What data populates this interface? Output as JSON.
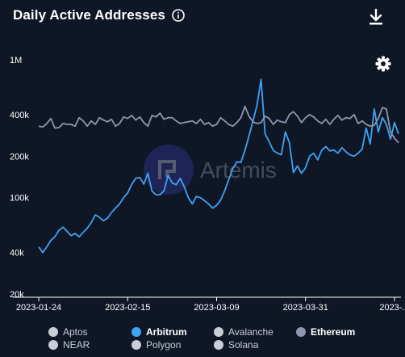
{
  "header": {
    "title": "Daily Active Addresses",
    "info_icon": "info-icon",
    "download_icon": "download-icon",
    "settings_icon": "gear-icon"
  },
  "watermark": {
    "text": "Artemis",
    "logo": "artemis-logo"
  },
  "colors": {
    "background": "#0f1726",
    "arbitrum": "#3ea3f2",
    "ethereum": "#8f96b0",
    "inactive": "#c9ced6",
    "axis_text": "#ffffff"
  },
  "legend": [
    {
      "label": "Aptos",
      "color": "#c9ced6",
      "active": false
    },
    {
      "label": "Arbitrum",
      "color": "#3ea3f2",
      "active": true
    },
    {
      "label": "Avalanche",
      "color": "#c9ced6",
      "active": false
    },
    {
      "label": "Ethereum",
      "color": "#8f96b0",
      "active": true
    },
    {
      "label": "NEAR",
      "color": "#c9ced6",
      "active": false
    },
    {
      "label": "Polygon",
      "color": "#c9ced6",
      "active": false
    },
    {
      "label": "Solana",
      "color": "#c9ced6",
      "active": false
    }
  ],
  "chart_data": {
    "type": "line",
    "title": "Daily Active Addresses",
    "y_scale": "log",
    "ylim": [
      20000,
      1000000
    ],
    "y_ticks": [
      {
        "value": 20000,
        "label": "20k"
      },
      {
        "value": 40000,
        "label": "40k"
      },
      {
        "value": 100000,
        "label": "100k"
      },
      {
        "value": 200000,
        "label": "200k"
      },
      {
        "value": 400000,
        "label": "400k"
      },
      {
        "value": 1000000,
        "label": "1M"
      }
    ],
    "x_tick_labels": [
      "2023-01-24",
      "2023-02-15",
      "2023-03-09",
      "2023-03-31",
      "2023-..."
    ],
    "x_tick_index": [
      0,
      22,
      44,
      66,
      88
    ],
    "grid": false,
    "legend_position": "bottom",
    "series": [
      {
        "name": "Arbitrum",
        "color": "#3ea3f2",
        "values": [
          44000,
          40000,
          44000,
          49000,
          52000,
          58000,
          61000,
          57000,
          53000,
          55000,
          52000,
          56000,
          60000,
          66000,
          75000,
          72000,
          68000,
          71000,
          78000,
          84000,
          90000,
          100000,
          108000,
          125000,
          138000,
          140000,
          125000,
          150000,
          112000,
          105000,
          105000,
          112000,
          145000,
          128000,
          124000,
          138000,
          120000,
          100000,
          90000,
          102000,
          100000,
          95000,
          90000,
          84000,
          88000,
          96000,
          112000,
          135000,
          162000,
          182000,
          180000,
          220000,
          280000,
          360000,
          470000,
          720000,
          290000,
          255000,
          220000,
          210000,
          205000,
          300000,
          250000,
          152000,
          170000,
          150000,
          165000,
          200000,
          210000,
          188000,
          220000,
          235000,
          218000,
          222000,
          210000,
          230000,
          215000,
          204000,
          200000,
          210000,
          225000,
          320000,
          245000,
          440000,
          300000,
          380000,
          340000,
          265000,
          350000,
          290000
        ]
      },
      {
        "name": "Ethereum",
        "color": "#8f96b0",
        "values": [
          330000,
          325000,
          345000,
          375000,
          320000,
          322000,
          345000,
          340000,
          340000,
          330000,
          380000,
          360000,
          330000,
          360000,
          340000,
          380000,
          365000,
          355000,
          370000,
          330000,
          345000,
          385000,
          375000,
          395000,
          365000,
          385000,
          350000,
          330000,
          395000,
          385000,
          410000,
          370000,
          380000,
          380000,
          360000,
          345000,
          350000,
          355000,
          360000,
          345000,
          370000,
          340000,
          350000,
          330000,
          340000,
          380000,
          360000,
          340000,
          330000,
          350000,
          380000,
          460000,
          390000,
          355000,
          345000,
          350000,
          390000,
          375000,
          340000,
          365000,
          355000,
          350000,
          400000,
          420000,
          390000,
          350000,
          380000,
          400000,
          385000,
          360000,
          345000,
          370000,
          340000,
          370000,
          395000,
          365000,
          380000,
          375000,
          400000,
          345000,
          360000,
          340000,
          330000,
          335000,
          375000,
          450000,
          440000,
          300000,
          270000,
          250000
        ]
      }
    ]
  }
}
